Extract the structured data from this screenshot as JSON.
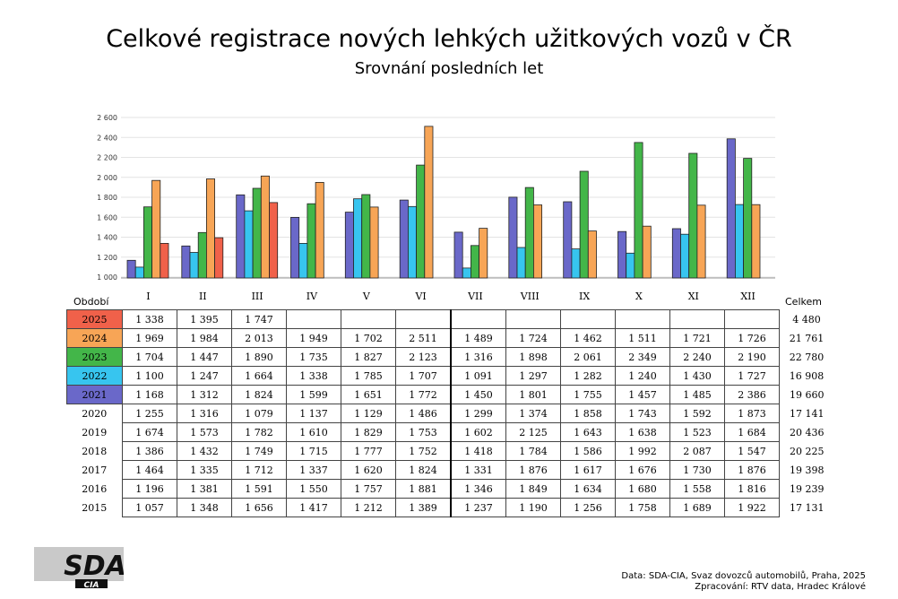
{
  "title": "Celkové registrace nových lehkých užitkových vozů v ČR",
  "subtitle": "Srovnání posledních let",
  "table": {
    "period_label": "Období",
    "total_label": "Celkem",
    "months": [
      "I",
      "II",
      "III",
      "IV",
      "V",
      "VI",
      "VII",
      "VIII",
      "IX",
      "X",
      "XI",
      "XII"
    ],
    "rows": [
      {
        "year": "2025",
        "color": "#f0614a",
        "cells": [
          "1 338",
          "1 395",
          "1 747",
          "",
          "",
          "",
          "",
          "",
          "",
          "",
          "",
          ""
        ],
        "total": "4 480"
      },
      {
        "year": "2024",
        "color": "#f7a556",
        "cells": [
          "1 969",
          "1 984",
          "2 013",
          "1 949",
          "1 702",
          "2 511",
          "1 489",
          "1 724",
          "1 462",
          "1 511",
          "1 721",
          "1 726"
        ],
        "total": "21 761"
      },
      {
        "year": "2023",
        "color": "#43b649",
        "cells": [
          "1 704",
          "1 447",
          "1 890",
          "1 735",
          "1 827",
          "2 123",
          "1 316",
          "1 898",
          "2 061",
          "2 349",
          "2 240",
          "2 190"
        ],
        "total": "22 780"
      },
      {
        "year": "2022",
        "color": "#37c5ef",
        "cells": [
          "1 100",
          "1 247",
          "1 664",
          "1 338",
          "1 785",
          "1 707",
          "1 091",
          "1 297",
          "1 282",
          "1 240",
          "1 430",
          "1 727"
        ],
        "total": "16 908"
      },
      {
        "year": "2021",
        "color": "#6a68c9",
        "cells": [
          "1 168",
          "1 312",
          "1 824",
          "1 599",
          "1 651",
          "1 772",
          "1 450",
          "1 801",
          "1 755",
          "1 457",
          "1 485",
          "2 386"
        ],
        "total": "19 660"
      },
      {
        "year": "2020",
        "color": "",
        "cells": [
          "1 255",
          "1 316",
          "1 079",
          "1 137",
          "1 129",
          "1 486",
          "1 299",
          "1 374",
          "1 858",
          "1 743",
          "1 592",
          "1 873"
        ],
        "total": "17 141"
      },
      {
        "year": "2019",
        "color": "",
        "cells": [
          "1 674",
          "1 573",
          "1 782",
          "1 610",
          "1 829",
          "1 753",
          "1 602",
          "2 125",
          "1 643",
          "1 638",
          "1 523",
          "1 684"
        ],
        "total": "20 436"
      },
      {
        "year": "2018",
        "color": "",
        "cells": [
          "1 386",
          "1 432",
          "1 749",
          "1 715",
          "1 777",
          "1 752",
          "1 418",
          "1 784",
          "1 586",
          "1 992",
          "2 087",
          "1 547"
        ],
        "total": "20 225"
      },
      {
        "year": "2017",
        "color": "",
        "cells": [
          "1 464",
          "1 335",
          "1 712",
          "1 337",
          "1 620",
          "1 824",
          "1 331",
          "1 876",
          "1 617",
          "1 676",
          "1 730",
          "1 876"
        ],
        "total": "19 398"
      },
      {
        "year": "2016",
        "color": "",
        "cells": [
          "1 196",
          "1 381",
          "1 591",
          "1 550",
          "1 757",
          "1 881",
          "1 346",
          "1 849",
          "1 634",
          "1 680",
          "1 558",
          "1 816"
        ],
        "total": "19 239"
      },
      {
        "year": "2015",
        "color": "",
        "cells": [
          "1 057",
          "1 348",
          "1 656",
          "1 417",
          "1 212",
          "1 389",
          "1 237",
          "1 190",
          "1 256",
          "1 758",
          "1 689",
          "1 922"
        ],
        "total": "17 131"
      }
    ]
  },
  "chart_data": {
    "type": "bar",
    "categories": [
      "I",
      "II",
      "III",
      "IV",
      "V",
      "VI",
      "VII",
      "VIII",
      "IX",
      "X",
      "XI",
      "XII"
    ],
    "ylim": [
      1000,
      2600
    ],
    "yticks": [
      "1 000",
      "1 200",
      "1 400",
      "1 600",
      "1 800",
      "2 000",
      "2 200",
      "2 400",
      "2 600"
    ],
    "ytick_values": [
      1000,
      1200,
      1400,
      1600,
      1800,
      2000,
      2200,
      2400,
      2600
    ],
    "grid": true,
    "series": [
      {
        "name": "2021",
        "color": "#6a68c9",
        "values": [
          1168,
          1312,
          1824,
          1599,
          1651,
          1772,
          1450,
          1801,
          1755,
          1457,
          1485,
          2386
        ]
      },
      {
        "name": "2022",
        "color": "#37c5ef",
        "values": [
          1100,
          1247,
          1664,
          1338,
          1785,
          1707,
          1091,
          1297,
          1282,
          1240,
          1430,
          1727
        ]
      },
      {
        "name": "2023",
        "color": "#43b649",
        "values": [
          1704,
          1447,
          1890,
          1735,
          1827,
          2123,
          1316,
          1898,
          2061,
          2349,
          2240,
          2190
        ]
      },
      {
        "name": "2024",
        "color": "#f7a556",
        "values": [
          1969,
          1984,
          2013,
          1949,
          1702,
          2511,
          1489,
          1724,
          1462,
          1511,
          1721,
          1726
        ]
      },
      {
        "name": "2025",
        "color": "#f0614a",
        "values": [
          1338,
          1395,
          1747,
          null,
          null,
          null,
          null,
          null,
          null,
          null,
          null,
          null
        ]
      }
    ]
  },
  "footer": {
    "line1": "Data: SDA-CIA, Svaz dovozců automobilů, Praha, 2025",
    "line2": "Zpracování: RTV data, Hradec Králové"
  },
  "logo": {
    "text": "SDA",
    "subtext": "CIA"
  }
}
